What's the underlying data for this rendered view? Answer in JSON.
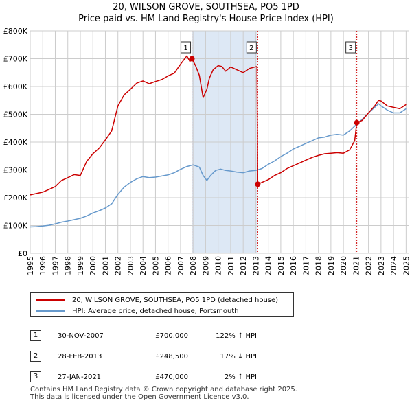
{
  "title_line1": "20, WILSON GROVE, SOUTHSEA, PO5 1PD",
  "title_line2": "Price paid vs. HM Land Registry's House Price Index (HPI)",
  "colors": {
    "property": "#cc0000",
    "hpi": "#6699cc",
    "shade": "#dde8f5",
    "marker_line": "#cc0000"
  },
  "chart_data": {
    "type": "line",
    "title": "Price paid vs. HM Land Registry's House Price Index (HPI)",
    "xlabel": "",
    "ylabel": "",
    "xlim": [
      1995,
      2025.2
    ],
    "ylim": [
      0,
      800000
    ],
    "y_ticks": [
      0,
      100000,
      200000,
      300000,
      400000,
      500000,
      600000,
      700000,
      800000
    ],
    "y_tick_labels": [
      "£0",
      "£100K",
      "£200K",
      "£300K",
      "£400K",
      "£500K",
      "£600K",
      "£700K",
      "£800K"
    ],
    "x_ticks": [
      1995,
      1996,
      1997,
      1998,
      1999,
      2000,
      2001,
      2002,
      2003,
      2004,
      2005,
      2006,
      2007,
      2008,
      2009,
      2010,
      2011,
      2012,
      2013,
      2014,
      2015,
      2016,
      2017,
      2018,
      2019,
      2020,
      2021,
      2022,
      2023,
      2024,
      2025
    ],
    "x_tick_labels": [
      "1995",
      "1996",
      "1997",
      "1998",
      "1999",
      "2000",
      "2001",
      "2002",
      "2003",
      "2004",
      "2005",
      "2006",
      "2007",
      "2008",
      "2009",
      "2010",
      "2011",
      "2012",
      "2013",
      "2014",
      "2015",
      "2016",
      "2017",
      "2018",
      "2019",
      "2020",
      "2021",
      "2022",
      "2023",
      "2024",
      "2025"
    ],
    "series": [
      {
        "name": "20, WILSON GROVE, SOUTHSEA, PO5 1PD (detached house)",
        "x": [
          1995,
          1995.5,
          1996,
          1996.5,
          1997,
          1997.5,
          1998,
          1998.5,
          1999,
          1999.5,
          2000,
          2000.5,
          2001,
          2001.5,
          2002,
          2002.5,
          2003,
          2003.5,
          2004,
          2004.5,
          2005,
          2005.5,
          2006,
          2006.5,
          2007,
          2007.5,
          2007.75,
          2007.91,
          2008.2,
          2008.5,
          2008.8,
          2009.1,
          2009.3,
          2009.6,
          2010,
          2010.3,
          2010.6,
          2011,
          2011.5,
          2012,
          2012.5,
          2013.1,
          2013.16,
          2013.5,
          2014,
          2014.5,
          2015,
          2015.5,
          2016,
          2016.5,
          2017,
          2017.5,
          2018,
          2018.5,
          2019,
          2019.5,
          2020,
          2020.5,
          2020.9,
          2021.07,
          2021.5,
          2022,
          2022.5,
          2022.8,
          2023,
          2023.5,
          2024,
          2024.5,
          2025
        ],
        "values": [
          210000,
          215000,
          220000,
          230000,
          240000,
          262000,
          272000,
          283000,
          280000,
          330000,
          358000,
          378000,
          408000,
          440000,
          530000,
          570000,
          590000,
          612000,
          620000,
          610000,
          618000,
          625000,
          638000,
          648000,
          680000,
          710000,
          690000,
          700000,
          675000,
          640000,
          560000,
          590000,
          630000,
          660000,
          675000,
          672000,
          655000,
          670000,
          660000,
          650000,
          665000,
          672000,
          248500,
          255000,
          265000,
          280000,
          290000,
          305000,
          315000,
          325000,
          335000,
          345000,
          352000,
          358000,
          360000,
          362000,
          360000,
          372000,
          405000,
          470000,
          478000,
          505000,
          530000,
          550000,
          548000,
          530000,
          525000,
          520000,
          535000
        ],
        "color": "#cc0000"
      },
      {
        "name": "HPI: Average price, detached house, Portsmouth",
        "x": [
          1995,
          1995.5,
          1996,
          1996.5,
          1997,
          1997.5,
          1998,
          1998.5,
          1999,
          1999.5,
          2000,
          2000.5,
          2001,
          2001.5,
          2002,
          2002.5,
          2003,
          2003.5,
          2004,
          2004.5,
          2005,
          2005.5,
          2006,
          2006.5,
          2007,
          2007.5,
          2008,
          2008.5,
          2008.8,
          2009.1,
          2009.4,
          2009.8,
          2010.2,
          2010.6,
          2011,
          2011.5,
          2012,
          2012.5,
          2013,
          2013.5,
          2014,
          2014.5,
          2015,
          2015.5,
          2016,
          2016.5,
          2017,
          2017.5,
          2018,
          2018.5,
          2019,
          2019.5,
          2020,
          2020.5,
          2021,
          2021.5,
          2022,
          2022.5,
          2022.8,
          2023,
          2023.5,
          2024,
          2024.5,
          2025
        ],
        "values": [
          95000,
          96000,
          98000,
          101000,
          106000,
          112000,
          116000,
          121000,
          126000,
          134000,
          145000,
          153000,
          163000,
          178000,
          212000,
          238000,
          255000,
          268000,
          276000,
          272000,
          274000,
          278000,
          282000,
          290000,
          302000,
          312000,
          318000,
          310000,
          280000,
          262000,
          280000,
          298000,
          303000,
          298000,
          296000,
          292000,
          290000,
          296000,
          298000,
          305000,
          320000,
          332000,
          348000,
          360000,
          375000,
          385000,
          395000,
          405000,
          415000,
          418000,
          425000,
          428000,
          425000,
          440000,
          462000,
          482000,
          505000,
          525000,
          538000,
          530000,
          515000,
          505000,
          505000,
          520000
        ],
        "color": "#6699cc"
      }
    ],
    "shaded_regions": [
      [
        2007.91,
        2013.16
      ]
    ],
    "markers": [
      {
        "label": "1",
        "x": 2007.91,
        "value": 700000
      },
      {
        "label": "2",
        "x": 2013.16,
        "value": 248500
      },
      {
        "label": "3",
        "x": 2021.07,
        "value": 470000
      }
    ]
  },
  "legend": {
    "property": "20, WILSON GROVE, SOUTHSEA, PO5 1PD (detached house)",
    "hpi": "HPI: Average price, detached house, Portsmouth"
  },
  "sales": [
    {
      "num": "1",
      "date": "30-NOV-2007",
      "price": "£700,000",
      "hpi": "122% ↑ HPI"
    },
    {
      "num": "2",
      "date": "28-FEB-2013",
      "price": "£248,500",
      "hpi": "17% ↓ HPI"
    },
    {
      "num": "3",
      "date": "27-JAN-2021",
      "price": "£470,000",
      "hpi": "2% ↑ HPI"
    }
  ],
  "footer_line1": "Contains HM Land Registry data © Crown copyright and database right 2025.",
  "footer_line2": "This data is licensed under the Open Government Licence v3.0."
}
